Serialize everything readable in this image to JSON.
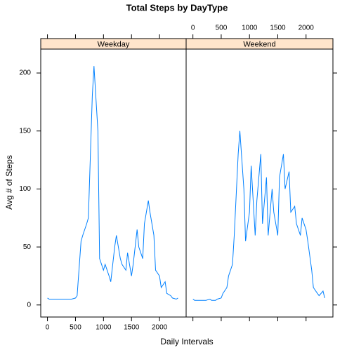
{
  "chart_data": {
    "type": "line",
    "title": "Total Steps by DayType",
    "xlabel": "Daily Intervals",
    "ylabel": "Avg # of Steps",
    "x": [
      0,
      30,
      100,
      130,
      200,
      230,
      300,
      330,
      400,
      430,
      500,
      530,
      600,
      630,
      700,
      730,
      800,
      830,
      900,
      930,
      1000,
      1030,
      1100,
      1130,
      1200,
      1230,
      1300,
      1330,
      1400,
      1430,
      1500,
      1530,
      1600,
      1630,
      1700,
      1730,
      1800,
      1830,
      1900,
      1930,
      2000,
      2030,
      2100,
      2130,
      2200,
      2230,
      2300,
      2330
    ],
    "series": [
      {
        "name": "Weekday",
        "color": "#0080ff",
        "values": [
          6,
          5,
          5,
          5,
          5,
          5,
          5,
          5,
          5,
          5,
          6,
          8,
          55,
          60,
          70,
          75,
          180,
          206,
          150,
          40,
          30,
          35,
          25,
          20,
          50,
          60,
          40,
          35,
          30,
          45,
          25,
          35,
          65,
          50,
          40,
          70,
          90,
          80,
          60,
          30,
          25,
          15,
          20,
          10,
          8,
          6,
          5,
          6
        ]
      },
      {
        "name": "Weekend",
        "color": "#0080ff",
        "values": [
          5,
          4,
          4,
          4,
          4,
          4,
          5,
          4,
          4,
          5,
          6,
          10,
          15,
          25,
          35,
          60,
          130,
          150,
          100,
          55,
          80,
          120,
          60,
          90,
          130,
          70,
          110,
          60,
          100,
          80,
          60,
          110,
          130,
          100,
          115,
          80,
          85,
          70,
          60,
          75,
          65,
          55,
          30,
          15,
          10,
          8,
          12,
          6
        ]
      }
    ],
    "xlim": [
      -120,
      2475
    ],
    "ylim": [
      -10.4,
      220.6
    ],
    "xticks": [
      0,
      500,
      1000,
      1500,
      2000
    ],
    "yticks": [
      0,
      50,
      100,
      150,
      200
    ]
  }
}
